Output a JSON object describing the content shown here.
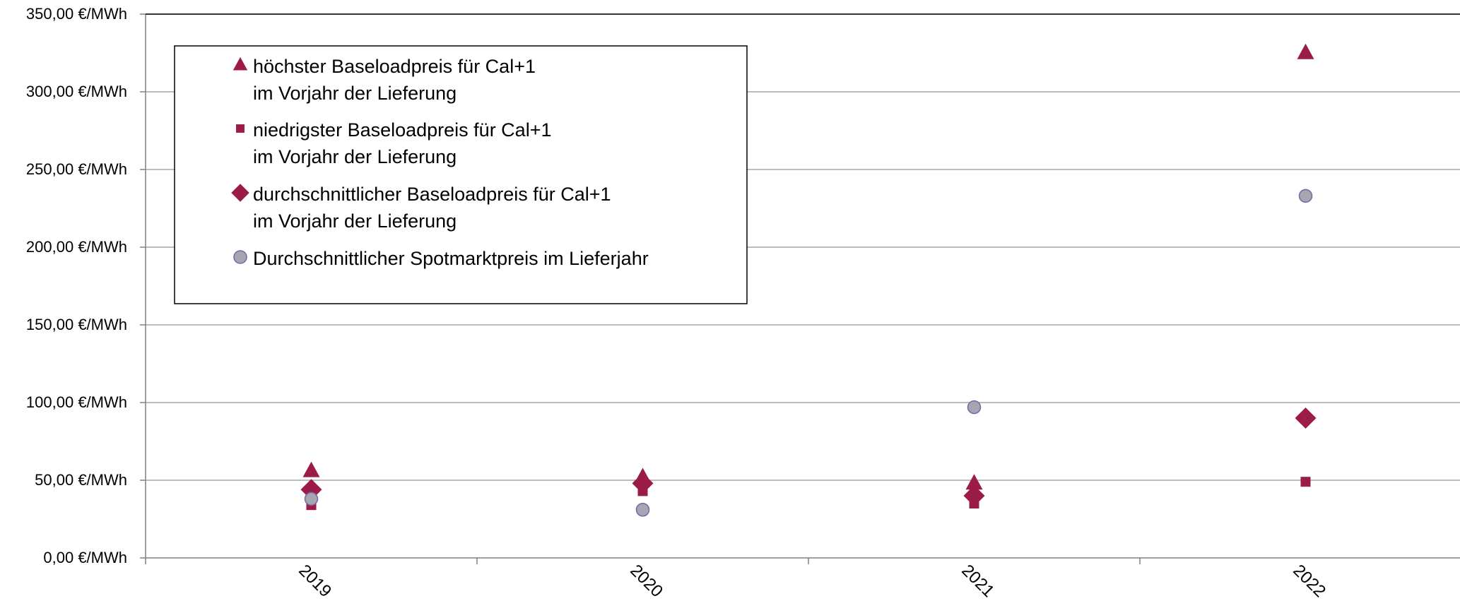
{
  "chart_data": {
    "type": "scatter",
    "categories": [
      "2019",
      "2020",
      "2021",
      "2022"
    ],
    "y_tick_labels": [
      "0,00 €/MWh",
      "50,00 €/MWh",
      "100,00 €/MWh",
      "150,00 €/MWh",
      "200,00 €/MWh",
      "250,00 €/MWh",
      "300,00 €/MWh",
      "350,00 €/MWh"
    ],
    "y_ticks": [
      0,
      50,
      100,
      150,
      200,
      250,
      300,
      350
    ],
    "ylim": [
      0,
      350
    ],
    "grid": true,
    "legend_position": "top-left",
    "colors": {
      "accent": "#9b1c47",
      "spot": "#a6a6b0",
      "spot_stroke": "#7a63a8",
      "grid": "#a6a6a6",
      "axis": "#808080"
    },
    "series": [
      {
        "name": "höchster Baseloadpreis für Cal+1 im Vorjahr der Lieferung",
        "legend_lines": [
          "höchster Baseloadpreis für Cal+1",
          "im Vorjahr der Lieferung"
        ],
        "marker": "triangle",
        "values": [
          56,
          52,
          48,
          325
        ]
      },
      {
        "name": "niedrigster Baseloadpreis für Cal+1 im Vorjahr der Lieferung",
        "legend_lines": [
          "niedrigster Baseloadpreis für Cal+1",
          "im Vorjahr der Lieferung"
        ],
        "marker": "square",
        "values": [
          34,
          43,
          35,
          49
        ]
      },
      {
        "name": "durchschnittlicher Baseloadpreis für Cal+1 im Vorjahr der Lieferung",
        "legend_lines": [
          "durchschnittlicher Baseloadpreis für Cal+1",
          "im Vorjahr der Lieferung"
        ],
        "marker": "diamond",
        "values": [
          44,
          48,
          40,
          90
        ]
      },
      {
        "name": "Durchschnittlicher Spotmarktpreis im Lieferjahr",
        "legend_lines": [
          "Durchschnittlicher Spotmarktpreis im Lieferjahr"
        ],
        "marker": "circle",
        "values": [
          38,
          31,
          97,
          233
        ]
      }
    ]
  }
}
